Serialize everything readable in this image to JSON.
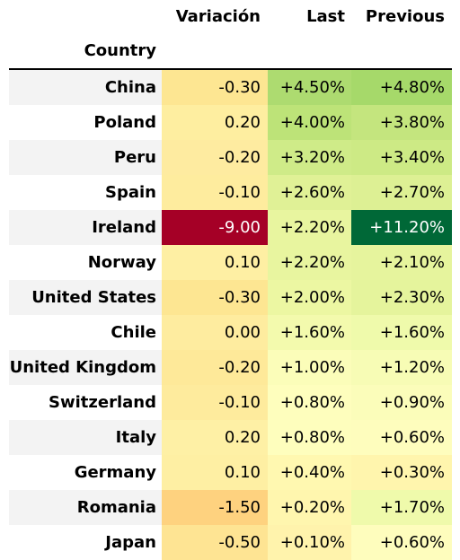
{
  "chart_data": {
    "type": "table",
    "columns": {
      "variation": "Variación",
      "last": "Last",
      "previous": "Previous"
    },
    "index_label": "Country",
    "rows": [
      {
        "country": "China",
        "variation": "-0.30",
        "last": "+4.50%",
        "previous": "+4.80%",
        "colors": {
          "variation": "#fde692",
          "last": "#addb70",
          "previous": "#a6d96a"
        },
        "dark": []
      },
      {
        "country": "Poland",
        "variation": "0.20",
        "last": "+4.00%",
        "previous": "+3.80%",
        "colors": {
          "variation": "#feeea0",
          "last": "#bde378",
          "previous": "#c4e57e"
        },
        "dark": []
      },
      {
        "country": "Peru",
        "variation": "-0.20",
        "last": "+3.20%",
        "previous": "+3.40%",
        "colors": {
          "variation": "#feeba0",
          "last": "#cfeb88",
          "previous": "#cdea85"
        },
        "dark": []
      },
      {
        "country": "Spain",
        "variation": "-0.10",
        "last": "+2.60%",
        "previous": "+2.70%",
        "colors": {
          "variation": "#feec9e",
          "last": "#e0f196",
          "previous": "#ddf094"
        },
        "dark": []
      },
      {
        "country": "Ireland",
        "variation": "-9.00",
        "last": "+2.20%",
        "previous": "+11.20%",
        "colors": {
          "variation": "#a50026",
          "last": "#e8f59f",
          "previous": "#006837"
        },
        "dark": [
          "variation",
          "previous"
        ]
      },
      {
        "country": "Norway",
        "variation": "0.10",
        "last": "+2.20%",
        "previous": "+2.10%",
        "colors": {
          "variation": "#feefa3",
          "last": "#e8f59f",
          "previous": "#e6f49d"
        },
        "dark": []
      },
      {
        "country": "United States",
        "variation": "-0.30",
        "last": "+2.00%",
        "previous": "+2.30%",
        "colors": {
          "variation": "#fde692",
          "last": "#ecf7a2",
          "previous": "#e5f49c"
        },
        "dark": []
      },
      {
        "country": "Chile",
        "variation": "0.00",
        "last": "+1.60%",
        "previous": "+1.60%",
        "colors": {
          "variation": "#feec9f",
          "last": "#f3faad",
          "previous": "#effaab"
        },
        "dark": []
      },
      {
        "country": "United Kingdom",
        "variation": "-0.20",
        "last": "+1.00%",
        "previous": "+1.20%",
        "colors": {
          "variation": "#fee999",
          "last": "#fbfdb9",
          "previous": "#f7fcb5"
        },
        "dark": []
      },
      {
        "country": "Switzerland",
        "variation": "-0.10",
        "last": "+0.80%",
        "previous": "+0.90%",
        "colors": {
          "variation": "#feeb9d",
          "last": "#fefebd",
          "previous": "#fbfdba"
        },
        "dark": []
      },
      {
        "country": "Italy",
        "variation": "0.20",
        "last": "+0.80%",
        "previous": "+0.60%",
        "colors": {
          "variation": "#fef0a5",
          "last": "#fefebd",
          "previous": "#fefdbd"
        },
        "dark": []
      },
      {
        "country": "Germany",
        "variation": "0.10",
        "last": "+0.40%",
        "previous": "+0.30%",
        "colors": {
          "variation": "#feefa3",
          "last": "#fff8b0",
          "previous": "#fff5ad"
        },
        "dark": []
      },
      {
        "country": "Romania",
        "variation": "-1.50",
        "last": "+0.20%",
        "previous": "+1.70%",
        "colors": {
          "variation": "#fed27f",
          "last": "#fff6ae",
          "previous": "#effaab"
        },
        "dark": []
      },
      {
        "country": "Japan",
        "variation": "-0.50",
        "last": "+0.10%",
        "previous": "+0.60%",
        "colors": {
          "variation": "#fee493",
          "last": "#fff3ac",
          "previous": "#fefdbd"
        },
        "dark": []
      }
    ],
    "stripe_color": "#f3f3f3",
    "text_color": "#000000",
    "dark_text_color": "#ffffff"
  }
}
